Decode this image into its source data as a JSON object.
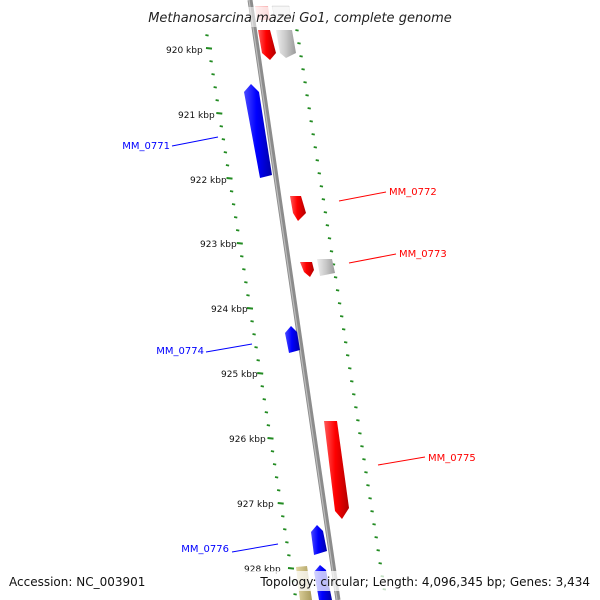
{
  "title": "Methanosarcina mazei Go1, complete genome",
  "footer": {
    "accession": "Accession: NC_003901",
    "summary": "Topology: circular; Length: 4,096,345 bp; Genes: 3,434"
  },
  "colors": {
    "forward": "#ff0000",
    "reverse": "#0000ff",
    "other": "#c8c8c8",
    "backbone": "#8c8c8c",
    "ticks": "#228b22",
    "misc": "#c8b978"
  },
  "ticks": [
    {
      "label": "920 kbp"
    },
    {
      "label": "921 kbp"
    },
    {
      "label": "922 kbp"
    },
    {
      "label": "923 kbp"
    },
    {
      "label": "924 kbp"
    },
    {
      "label": "925 kbp"
    },
    {
      "label": "926 kbp"
    },
    {
      "label": "927 kbp"
    },
    {
      "label": "928 kbp"
    }
  ],
  "gene_labels": [
    {
      "label": "MM_0771",
      "strand": "reverse"
    },
    {
      "label": "MM_0772",
      "strand": "forward"
    },
    {
      "label": "MM_0773",
      "strand": "forward"
    },
    {
      "label": "MM_0774",
      "strand": "reverse"
    },
    {
      "label": "MM_0775",
      "strand": "forward"
    },
    {
      "label": "MM_0776",
      "strand": "reverse"
    }
  ]
}
